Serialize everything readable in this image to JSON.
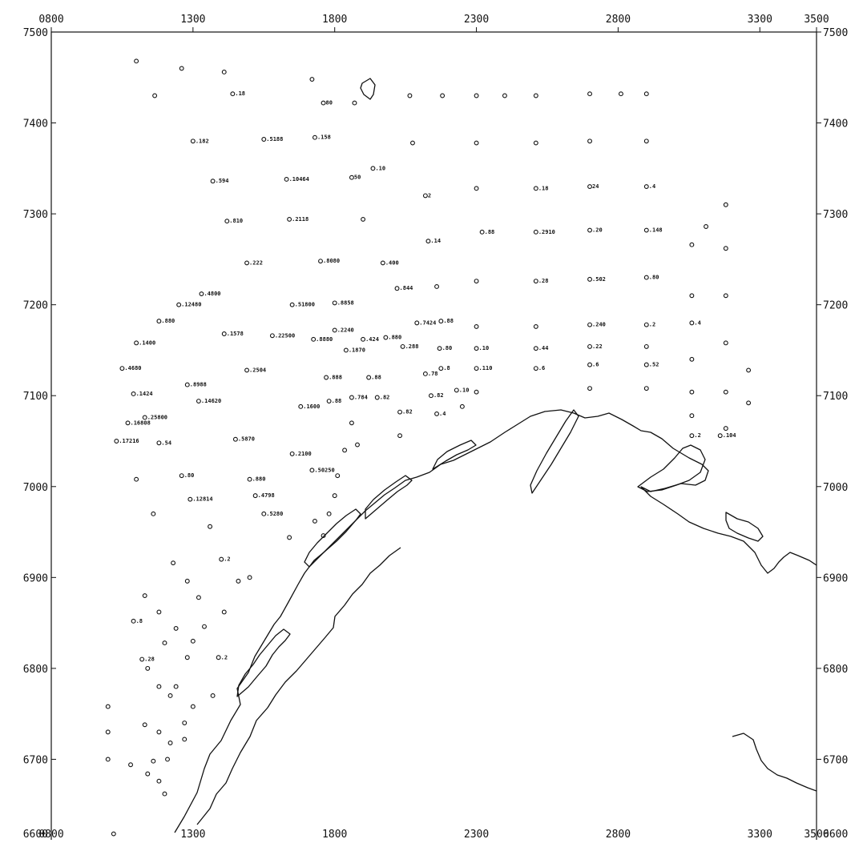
{
  "map": {
    "x_axis": {
      "range": [
        800,
        3500
      ],
      "top_ticks": [
        {
          "value": 800,
          "label": "0800"
        },
        {
          "value": 1300,
          "label": "1300"
        },
        {
          "value": 1800,
          "label": "1800"
        },
        {
          "value": 2300,
          "label": "2300"
        },
        {
          "value": 2800,
          "label": "2800"
        },
        {
          "value": 3300,
          "label": "3300"
        },
        {
          "value": 3500,
          "label": "3500"
        }
      ],
      "bottom_ticks": [
        {
          "value": 800,
          "label": "0800"
        },
        {
          "value": 1300,
          "label": "1300"
        },
        {
          "value": 1800,
          "label": "1800"
        },
        {
          "value": 2300,
          "label": "2300"
        },
        {
          "value": 2800,
          "label": "2800"
        },
        {
          "value": 3300,
          "label": "3300"
        },
        {
          "value": 3500,
          "label": "3500"
        }
      ]
    },
    "y_axis": {
      "range": [
        6600,
        7500
      ],
      "ticks": [
        {
          "value": 7500,
          "left": "7500",
          "right": "7500"
        },
        {
          "value": 7400,
          "left": "7400",
          "right": "7400"
        },
        {
          "value": 7300,
          "left": "7300",
          "right": "7300"
        },
        {
          "value": 7200,
          "left": "7200",
          "right": "7200"
        },
        {
          "value": 7100,
          "left": "7100",
          "right": "7100"
        },
        {
          "value": 7000,
          "left": "7000",
          "right": "7000"
        },
        {
          "value": 6900,
          "left": "6900",
          "right": "6900"
        },
        {
          "value": 6800,
          "left": "6800",
          "right": "6800"
        },
        {
          "value": 6700,
          "left": "6700",
          "right": "6700"
        },
        {
          "value": 6600,
          "left": "6600",
          "right": "6600"
        }
      ]
    },
    "stations": [
      {
        "x": 1100,
        "y": 7468,
        "label": ""
      },
      {
        "x": 1260,
        "y": 7460,
        "label": ""
      },
      {
        "x": 1410,
        "y": 7456,
        "label": ""
      },
      {
        "x": 1165,
        "y": 7430,
        "label": ""
      },
      {
        "x": 1440,
        "y": 7432,
        "label": ".18"
      },
      {
        "x": 1720,
        "y": 7448,
        "label": ""
      },
      {
        "x": 1760,
        "y": 7422,
        "label": "80"
      },
      {
        "x": 1870,
        "y": 7422,
        "label": ""
      },
      {
        "x": 2065,
        "y": 7430,
        "label": ""
      },
      {
        "x": 2180,
        "y": 7430,
        "label": ""
      },
      {
        "x": 2300,
        "y": 7430,
        "label": ""
      },
      {
        "x": 2400,
        "y": 7430,
        "label": ""
      },
      {
        "x": 2510,
        "y": 7430,
        "label": ""
      },
      {
        "x": 2700,
        "y": 7432,
        "label": ""
      },
      {
        "x": 2810,
        "y": 7432,
        "label": ""
      },
      {
        "x": 2900,
        "y": 7432,
        "label": ""
      },
      {
        "x": 1300,
        "y": 7380,
        "label": ".182"
      },
      {
        "x": 1550,
        "y": 7382,
        "label": ".5188"
      },
      {
        "x": 1730,
        "y": 7384,
        "label": ".158"
      },
      {
        "x": 2075,
        "y": 7378,
        "label": ""
      },
      {
        "x": 2300,
        "y": 7378,
        "label": ""
      },
      {
        "x": 2510,
        "y": 7378,
        "label": ""
      },
      {
        "x": 2700,
        "y": 7380,
        "label": ""
      },
      {
        "x": 2900,
        "y": 7380,
        "label": ""
      },
      {
        "x": 1935,
        "y": 7350,
        "label": ".10"
      },
      {
        "x": 1370,
        "y": 7336,
        "label": ".594"
      },
      {
        "x": 1630,
        "y": 7338,
        "label": ".10464"
      },
      {
        "x": 1860,
        "y": 7340,
        "label": "50"
      },
      {
        "x": 2300,
        "y": 7328,
        "label": ""
      },
      {
        "x": 2510,
        "y": 7328,
        "label": ".18"
      },
      {
        "x": 2700,
        "y": 7330,
        "label": "24"
      },
      {
        "x": 2900,
        "y": 7330,
        "label": ".4"
      },
      {
        "x": 2120,
        "y": 7320,
        "label": "2"
      },
      {
        "x": 3180,
        "y": 7310,
        "label": ""
      },
      {
        "x": 1420,
        "y": 7292,
        "label": ".810"
      },
      {
        "x": 1640,
        "y": 7294,
        "label": ".2118"
      },
      {
        "x": 1900,
        "y": 7294,
        "label": ""
      },
      {
        "x": 3110,
        "y": 7286,
        "label": ""
      },
      {
        "x": 2320,
        "y": 7280,
        "label": ".88"
      },
      {
        "x": 2510,
        "y": 7280,
        "label": ".2910"
      },
      {
        "x": 2700,
        "y": 7282,
        "label": ".20"
      },
      {
        "x": 2900,
        "y": 7282,
        "label": ".148"
      },
      {
        "x": 2130,
        "y": 7270,
        "label": ".14"
      },
      {
        "x": 3060,
        "y": 7266,
        "label": ""
      },
      {
        "x": 3180,
        "y": 7262,
        "label": ""
      },
      {
        "x": 1490,
        "y": 7246,
        "label": ".222"
      },
      {
        "x": 1750,
        "y": 7248,
        "label": ".8080"
      },
      {
        "x": 1970,
        "y": 7246,
        "label": ".400"
      },
      {
        "x": 2300,
        "y": 7226,
        "label": ""
      },
      {
        "x": 2510,
        "y": 7226,
        "label": ".28"
      },
      {
        "x": 2700,
        "y": 7228,
        "label": ".502"
      },
      {
        "x": 2900,
        "y": 7230,
        "label": ".80"
      },
      {
        "x": 2160,
        "y": 7220,
        "label": ""
      },
      {
        "x": 2020,
        "y": 7218,
        "label": ".844"
      },
      {
        "x": 1330,
        "y": 7212,
        "label": ".4800"
      },
      {
        "x": 3060,
        "y": 7210,
        "label": ""
      },
      {
        "x": 3180,
        "y": 7210,
        "label": ""
      },
      {
        "x": 1250,
        "y": 7200,
        "label": ".12480"
      },
      {
        "x": 1650,
        "y": 7200,
        "label": ".51800"
      },
      {
        "x": 1800,
        "y": 7202,
        "label": ".8858"
      },
      {
        "x": 2090,
        "y": 7180,
        "label": ".7424"
      },
      {
        "x": 2175,
        "y": 7182,
        "label": ".88"
      },
      {
        "x": 1180,
        "y": 7182,
        "label": ".880"
      },
      {
        "x": 2300,
        "y": 7176,
        "label": ""
      },
      {
        "x": 2510,
        "y": 7176,
        "label": ""
      },
      {
        "x": 2700,
        "y": 7178,
        "label": ".240"
      },
      {
        "x": 2900,
        "y": 7178,
        "label": ".2"
      },
      {
        "x": 3060,
        "y": 7180,
        "label": ".4"
      },
      {
        "x": 1800,
        "y": 7172,
        "label": ".2240"
      },
      {
        "x": 1410,
        "y": 7168,
        "label": ".1578"
      },
      {
        "x": 1580,
        "y": 7166,
        "label": ".22500"
      },
      {
        "x": 1725,
        "y": 7162,
        "label": ".8880"
      },
      {
        "x": 1900,
        "y": 7162,
        "label": ".424"
      },
      {
        "x": 1980,
        "y": 7164,
        "label": ".880"
      },
      {
        "x": 1100,
        "y": 7158,
        "label": ".1400"
      },
      {
        "x": 2040,
        "y": 7154,
        "label": ".288"
      },
      {
        "x": 2170,
        "y": 7152,
        "label": ".80"
      },
      {
        "x": 2300,
        "y": 7152,
        "label": ".10"
      },
      {
        "x": 2510,
        "y": 7152,
        "label": ".44"
      },
      {
        "x": 2700,
        "y": 7154,
        "label": ".22"
      },
      {
        "x": 2900,
        "y": 7154,
        "label": ""
      },
      {
        "x": 3180,
        "y": 7158,
        "label": ""
      },
      {
        "x": 1840,
        "y": 7150,
        "label": ".1870"
      },
      {
        "x": 2700,
        "y": 7134,
        "label": ".6"
      },
      {
        "x": 2900,
        "y": 7134,
        "label": ".52"
      },
      {
        "x": 3060,
        "y": 7140,
        "label": ""
      },
      {
        "x": 1050,
        "y": 7130,
        "label": ".4680"
      },
      {
        "x": 1490,
        "y": 7128,
        "label": ".2504"
      },
      {
        "x": 2175,
        "y": 7130,
        "label": ".8"
      },
      {
        "x": 2300,
        "y": 7130,
        "label": ".110"
      },
      {
        "x": 2510,
        "y": 7130,
        "label": ".6"
      },
      {
        "x": 3260,
        "y": 7128,
        "label": ""
      },
      {
        "x": 2120,
        "y": 7124,
        "label": ".78"
      },
      {
        "x": 1770,
        "y": 7120,
        "label": ".888"
      },
      {
        "x": 1920,
        "y": 7120,
        "label": ".88"
      },
      {
        "x": 1280,
        "y": 7112,
        "label": ".8988"
      },
      {
        "x": 2700,
        "y": 7108,
        "label": ""
      },
      {
        "x": 2900,
        "y": 7108,
        "label": ""
      },
      {
        "x": 2230,
        "y": 7106,
        "label": ".10"
      },
      {
        "x": 2300,
        "y": 7104,
        "label": ""
      },
      {
        "x": 3060,
        "y": 7104,
        "label": ""
      },
      {
        "x": 3180,
        "y": 7104,
        "label": ""
      },
      {
        "x": 1090,
        "y": 7102,
        "label": ".1424"
      },
      {
        "x": 2140,
        "y": 7100,
        "label": ".82"
      },
      {
        "x": 1950,
        "y": 7098,
        "label": ".82"
      },
      {
        "x": 1860,
        "y": 7098,
        "label": ".784"
      },
      {
        "x": 1320,
        "y": 7094,
        "label": ".14620"
      },
      {
        "x": 1780,
        "y": 7094,
        "label": ".88"
      },
      {
        "x": 3260,
        "y": 7092,
        "label": ""
      },
      {
        "x": 1680,
        "y": 7088,
        "label": ".1600"
      },
      {
        "x": 2250,
        "y": 7088,
        "label": ""
      },
      {
        "x": 2030,
        "y": 7082,
        "label": ".82"
      },
      {
        "x": 2160,
        "y": 7080,
        "label": ".4"
      },
      {
        "x": 3060,
        "y": 7078,
        "label": ""
      },
      {
        "x": 1130,
        "y": 7076,
        "label": ".25800"
      },
      {
        "x": 1070,
        "y": 7070,
        "label": ".16808"
      },
      {
        "x": 1860,
        "y": 7070,
        "label": ""
      },
      {
        "x": 3180,
        "y": 7064,
        "label": ""
      },
      {
        "x": 2030,
        "y": 7056,
        "label": ""
      },
      {
        "x": 3060,
        "y": 7056,
        "label": ".2"
      },
      {
        "x": 3160,
        "y": 7056,
        "label": ".104"
      },
      {
        "x": 1450,
        "y": 7052,
        "label": ".5870"
      },
      {
        "x": 1030,
        "y": 7050,
        "label": ".17216"
      },
      {
        "x": 1180,
        "y": 7048,
        "label": ".54"
      },
      {
        "x": 1880,
        "y": 7046,
        "label": ""
      },
      {
        "x": 1835,
        "y": 7040,
        "label": ""
      },
      {
        "x": 1650,
        "y": 7036,
        "label": ".2100"
      },
      {
        "x": 1720,
        "y": 7018,
        "label": ".50250"
      },
      {
        "x": 1810,
        "y": 7012,
        "label": ""
      },
      {
        "x": 1260,
        "y": 7012,
        "label": ".80"
      },
      {
        "x": 1500,
        "y": 7008,
        "label": ".880"
      },
      {
        "x": 1100,
        "y": 7008,
        "label": ""
      },
      {
        "x": 1800,
        "y": 6990,
        "label": ""
      },
      {
        "x": 1520,
        "y": 6990,
        "label": ".4798"
      },
      {
        "x": 1290,
        "y": 6986,
        "label": ".12814"
      },
      {
        "x": 1780,
        "y": 6970,
        "label": ""
      },
      {
        "x": 1550,
        "y": 6970,
        "label": ".5280"
      },
      {
        "x": 1160,
        "y": 6970,
        "label": ""
      },
      {
        "x": 1730,
        "y": 6962,
        "label": ""
      },
      {
        "x": 1360,
        "y": 6956,
        "label": ""
      },
      {
        "x": 1760,
        "y": 6946,
        "label": ""
      },
      {
        "x": 1640,
        "y": 6944,
        "label": ""
      },
      {
        "x": 1400,
        "y": 6920,
        "label": ".2"
      },
      {
        "x": 1230,
        "y": 6916,
        "label": ""
      },
      {
        "x": 1500,
        "y": 6900,
        "label": ""
      },
      {
        "x": 1460,
        "y": 6896,
        "label": ""
      },
      {
        "x": 1280,
        "y": 6896,
        "label": ""
      },
      {
        "x": 1130,
        "y": 6880,
        "label": ""
      },
      {
        "x": 1320,
        "y": 6878,
        "label": ""
      },
      {
        "x": 1180,
        "y": 6862,
        "label": ""
      },
      {
        "x": 1410,
        "y": 6862,
        "label": ""
      },
      {
        "x": 1090,
        "y": 6852,
        "label": ".8"
      },
      {
        "x": 1240,
        "y": 6844,
        "label": ""
      },
      {
        "x": 1340,
        "y": 6846,
        "label": ""
      },
      {
        "x": 1300,
        "y": 6830,
        "label": ""
      },
      {
        "x": 1200,
        "y": 6828,
        "label": ""
      },
      {
        "x": 1120,
        "y": 6810,
        "label": ".28"
      },
      {
        "x": 1280,
        "y": 6812,
        "label": ""
      },
      {
        "x": 1390,
        "y": 6812,
        "label": ".2"
      },
      {
        "x": 1140,
        "y": 6800,
        "label": ""
      },
      {
        "x": 1180,
        "y": 6780,
        "label": ""
      },
      {
        "x": 1240,
        "y": 6780,
        "label": ""
      },
      {
        "x": 1220,
        "y": 6770,
        "label": ""
      },
      {
        "x": 1370,
        "y": 6770,
        "label": ""
      },
      {
        "x": 1300,
        "y": 6758,
        "label": ""
      },
      {
        "x": 1000,
        "y": 6758,
        "label": ""
      },
      {
        "x": 1130,
        "y": 6738,
        "label": ""
      },
      {
        "x": 1270,
        "y": 6740,
        "label": ""
      },
      {
        "x": 1000,
        "y": 6730,
        "label": ""
      },
      {
        "x": 1180,
        "y": 6730,
        "label": ""
      },
      {
        "x": 1270,
        "y": 6722,
        "label": ""
      },
      {
        "x": 1220,
        "y": 6718,
        "label": ""
      },
      {
        "x": 1000,
        "y": 6700,
        "label": ""
      },
      {
        "x": 1080,
        "y": 6694,
        "label": ""
      },
      {
        "x": 1160,
        "y": 6698,
        "label": ""
      },
      {
        "x": 1210,
        "y": 6700,
        "label": ""
      },
      {
        "x": 1140,
        "y": 6684,
        "label": ""
      },
      {
        "x": 1180,
        "y": 6676,
        "label": ""
      },
      {
        "x": 1200,
        "y": 6662,
        "label": ""
      },
      {
        "x": 1020,
        "y": 6618,
        "label": ""
      }
    ]
  }
}
